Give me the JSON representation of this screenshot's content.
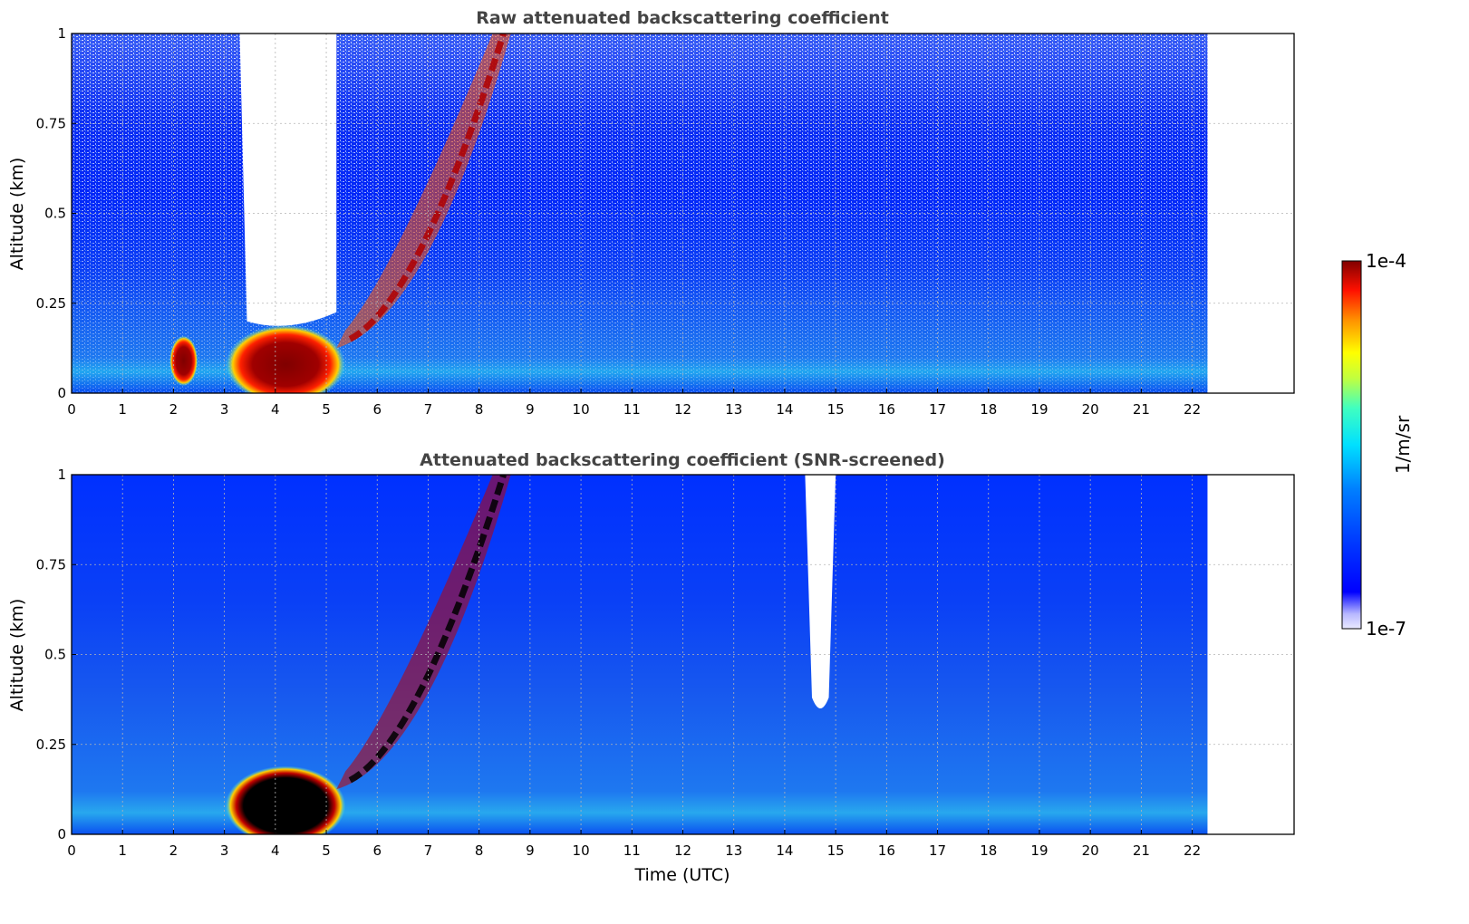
{
  "chart_data": [
    {
      "type": "heatmap",
      "title": "Raw attenuated backscattering coefficient",
      "xlabel": "",
      "ylabel": "Altitude (km)",
      "xlim": [
        0,
        24
      ],
      "ylim": [
        0,
        1
      ],
      "x_ticks": [
        "0",
        "1",
        "2",
        "3",
        "4",
        "5",
        "6",
        "7",
        "8",
        "9",
        "10",
        "11",
        "12",
        "13",
        "14",
        "15",
        "16",
        "17",
        "18",
        "19",
        "20",
        "21",
        "22"
      ],
      "y_ticks": [
        "0",
        "0.25",
        "0.5",
        "0.75",
        "1"
      ],
      "grid": true,
      "data_extent_x": [
        0,
        22.3
      ],
      "features": [
        {
          "x_range": [
            2.1,
            2.3
          ],
          "y_range": [
            0.05,
            0.15
          ],
          "level": "high"
        },
        {
          "x_range": [
            3.2,
            5.2
          ],
          "y_range": [
            0.0,
            0.18
          ],
          "level": "very-high"
        },
        {
          "x_range": [
            5.2,
            8.8
          ],
          "y_range": [
            0.1,
            1.0
          ],
          "level": "high",
          "shape": "rising-layer"
        },
        {
          "x_range": [
            3.3,
            5.2
          ],
          "y_range": [
            0.2,
            1.0
          ],
          "level": "none"
        }
      ]
    },
    {
      "type": "heatmap",
      "title": "Attenuated backscattering coefficient (SNR-screened)",
      "xlabel": "Time (UTC)",
      "ylabel": "Altitude (km)",
      "xlim": [
        0,
        24
      ],
      "ylim": [
        0,
        1
      ],
      "x_ticks": [
        "0",
        "1",
        "2",
        "3",
        "4",
        "5",
        "6",
        "7",
        "8",
        "9",
        "10",
        "11",
        "12",
        "13",
        "14",
        "15",
        "16",
        "17",
        "18",
        "19",
        "20",
        "21",
        "22"
      ],
      "y_ticks": [
        "0",
        "0.25",
        "0.5",
        "0.75",
        "1"
      ],
      "grid": true,
      "data_extent_x": [
        0,
        22.3
      ],
      "features": [
        {
          "x_range": [
            3.2,
            5.2
          ],
          "y_range": [
            0.0,
            0.18
          ],
          "level": "saturated"
        },
        {
          "x_range": [
            5.2,
            8.8
          ],
          "y_range": [
            0.1,
            1.0
          ],
          "level": "saturated",
          "shape": "rising-layer"
        },
        {
          "x_range": [
            14.4,
            15.0
          ],
          "y_range": [
            0.33,
            1.0
          ],
          "level": "none"
        }
      ]
    }
  ],
  "colorbar": {
    "label": "1/m/sr",
    "max_label": "1e-4",
    "min_label": "1e-7",
    "scale": "log",
    "colormap": "jet",
    "range": [
      1e-07,
      0.0001
    ]
  }
}
